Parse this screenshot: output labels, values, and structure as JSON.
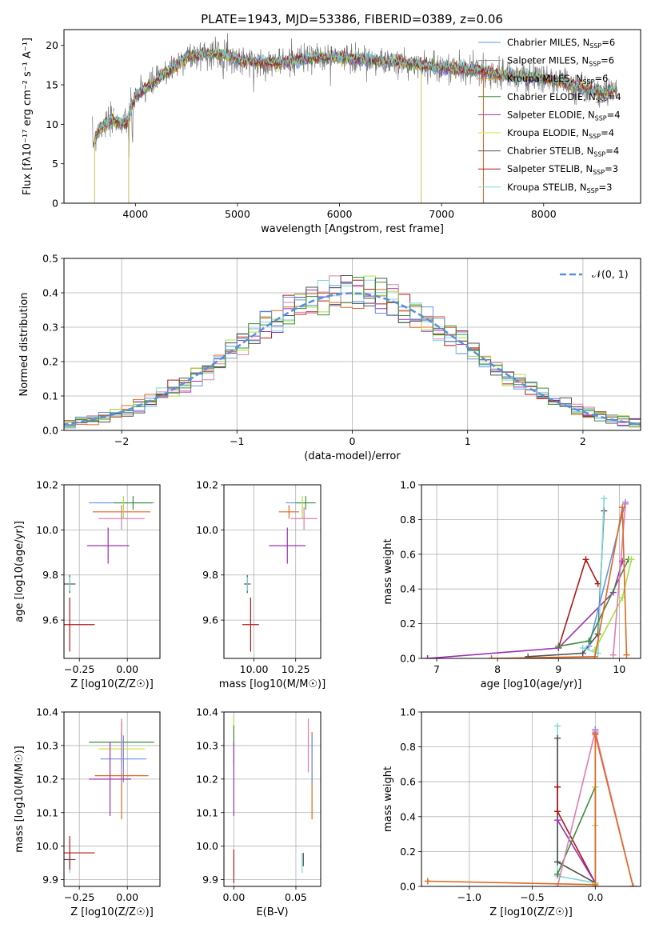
{
  "title": "PLATE=1943, MJD=53386, FIBERID=0389, z=0.06",
  "colors": [
    "#6495ED",
    "#8B8B8B",
    "#C8961E",
    "#3C8C3C",
    "#9B30B0",
    "#D4E040",
    "#505050",
    "#B01818",
    "#7DD8D8",
    "#E07CB0",
    "#E06820",
    "#A8E040"
  ],
  "chart_data": [
    {
      "type": "line",
      "id": "spectrum",
      "title": "PLATE=1943, MJD=53386, FIBERID=0389, z=0.06",
      "xlabel": "wavelength [Angstrom, rest frame]",
      "ylabel": "Flux [fλ10⁻¹⁷ erg cm⁻² s⁻¹ A⁻¹]",
      "xlim": [
        3300,
        8950
      ],
      "ylim": [
        0,
        22
      ],
      "xticks": [
        4000,
        5000,
        6000,
        7000,
        8000
      ],
      "yticks": [
        0,
        5,
        10,
        15,
        20
      ],
      "legend_position": "top-right",
      "series": [
        {
          "name": "Chabrier MILES, N_SSP=6",
          "color": "#6495ED"
        },
        {
          "name": "Salpeter MILES, N_SSP=6",
          "color": "#8B8B8B"
        },
        {
          "name": "Kroupa MILES, N_SSP=6",
          "color": "#C8961E"
        },
        {
          "name": "Chabrier ELODIE, N_SSP=4",
          "color": "#3C8C3C"
        },
        {
          "name": "Salpeter ELODIE, N_SSP=4",
          "color": "#9B30B0"
        },
        {
          "name": "Kroupa ELODIE, N_SSP=4",
          "color": "#D4E040"
        },
        {
          "name": "Chabrier STELIB, N_SSP=4",
          "color": "#505050"
        },
        {
          "name": "Salpeter STELIB, N_SSP=3",
          "color": "#B01818"
        },
        {
          "name": "Kroupa STELIB, N_SSP=3",
          "color": "#7DD8D8"
        }
      ],
      "continuum": {
        "x": [
          3580,
          3650,
          3700,
          3800,
          3900,
          3950,
          4000,
          4100,
          4200,
          4300,
          4400,
          4500,
          4700,
          4900,
          5000,
          5200,
          5400,
          5600,
          5800,
          6000,
          6200,
          6400,
          6600,
          6800,
          7000,
          7200,
          7400,
          7600,
          7800,
          8000,
          8200,
          8400,
          8600,
          8700
        ],
        "y": [
          7.5,
          9.5,
          10,
          10.5,
          10,
          11.5,
          13.5,
          14.5,
          15.5,
          16.5,
          17.5,
          18.5,
          19,
          18.8,
          18.2,
          17.8,
          17.8,
          18.2,
          18.5,
          18.5,
          18.3,
          18,
          17.8,
          17.5,
          17.2,
          17,
          16.8,
          16.2,
          16,
          15.8,
          15.3,
          14.5,
          14,
          14.5
        ]
      },
      "dips": [
        [
          3600,
          0
        ],
        [
          3934,
          0
        ],
        [
          6800,
          0
        ],
        [
          7410,
          0
        ]
      ]
    },
    {
      "type": "histogram",
      "id": "residuals",
      "xlabel": "(data-model)/error",
      "ylabel": "Normed distribution",
      "xlim": [
        -2.5,
        2.5
      ],
      "ylim": [
        0,
        0.5
      ],
      "xticks": [
        -2,
        -1,
        0,
        1,
        2
      ],
      "yticks": [
        0.0,
        0.1,
        0.2,
        0.3,
        0.4,
        0.5
      ],
      "reference_curve": {
        "name": "N(0,1)",
        "mu": 0,
        "sigma": 1,
        "color": "#5B8FD9"
      },
      "bin_width": 0.1,
      "legend_position": "top-right"
    },
    {
      "type": "scatter",
      "id": "age_vs_Z",
      "xlabel": "Z [log10(Z/Z☉)]",
      "ylabel": "age  [log10(age/yr)]",
      "xlim": [
        -0.33,
        0.17
      ],
      "ylim": [
        9.43,
        10.2
      ],
      "xticks": [
        -0.25,
        0.0
      ],
      "yticks": [
        9.6,
        9.8,
        10.0,
        10.2
      ],
      "points": [
        {
          "x": -0.03,
          "y": 10.12,
          "xerr": 0.17,
          "yerr": 0.0,
          "color": "#6495ED"
        },
        {
          "x": 0.03,
          "y": 10.12,
          "xerr": 0.1,
          "yerr": 0.03,
          "color": "#3C8C3C"
        },
        {
          "x": -0.03,
          "y": 10.08,
          "xerr": 0.15,
          "yerr": 0.03,
          "color": "#E06820"
        },
        {
          "x": -0.03,
          "y": 10.05,
          "xerr": 0.12,
          "yerr": 0.05,
          "color": "#E07CB0"
        },
        {
          "x": -0.02,
          "y": 10.1,
          "xerr": 0.0,
          "yerr": 0.05,
          "color": "#A8E040"
        },
        {
          "x": -0.1,
          "y": 9.93,
          "xerr": 0.11,
          "yerr": 0.08,
          "color": "#9B30B0"
        },
        {
          "x": -0.3,
          "y": 9.76,
          "xerr": 0.03,
          "yerr": 0.04,
          "color": "#505050"
        },
        {
          "x": -0.3,
          "y": 9.76,
          "xerr": 0.0,
          "yerr": 0.03,
          "color": "#7DD8D8"
        },
        {
          "x": -0.3,
          "y": 9.58,
          "xerr": 0.13,
          "yerr": 0.12,
          "color": "#B01818"
        }
      ]
    },
    {
      "type": "scatter",
      "id": "age_vs_mass",
      "xlabel": "mass [log10(M/M☉)]",
      "ylabel": "",
      "xlim": [
        9.82,
        10.4
      ],
      "ylim": [
        9.43,
        10.2
      ],
      "xticks": [
        10.0,
        10.25
      ],
      "yticks": [
        9.6,
        9.8,
        10.0,
        10.2
      ],
      "points": [
        {
          "x": 10.26,
          "y": 10.12,
          "xerr": 0.07,
          "yerr": 0.0,
          "color": "#6495ED"
        },
        {
          "x": 10.31,
          "y": 10.12,
          "xerr": 0.06,
          "yerr": 0.03,
          "color": "#3C8C3C"
        },
        {
          "x": 10.21,
          "y": 10.08,
          "xerr": 0.06,
          "yerr": 0.03,
          "color": "#E06820"
        },
        {
          "x": 10.3,
          "y": 10.05,
          "xerr": 0.08,
          "yerr": 0.05,
          "color": "#E07CB0"
        },
        {
          "x": 10.29,
          "y": 10.1,
          "xerr": 0.0,
          "yerr": 0.05,
          "color": "#A8E040"
        },
        {
          "x": 10.2,
          "y": 9.93,
          "xerr": 0.11,
          "yerr": 0.08,
          "color": "#9B30B0"
        },
        {
          "x": 9.96,
          "y": 9.76,
          "xerr": 0.02,
          "yerr": 0.04,
          "color": "#505050"
        },
        {
          "x": 9.96,
          "y": 9.76,
          "xerr": 0.0,
          "yerr": 0.03,
          "color": "#7DD8D8"
        },
        {
          "x": 9.98,
          "y": 9.58,
          "xerr": 0.05,
          "yerr": 0.12,
          "color": "#B01818"
        }
      ]
    },
    {
      "type": "line",
      "id": "massweight_vs_age",
      "xlabel": "age  [log10(age/yr)]",
      "ylabel": "mass weight",
      "xlim": [
        6.75,
        10.35
      ],
      "ylim": [
        0,
        1
      ],
      "xticks": [
        7,
        8,
        9,
        10
      ],
      "yticks": [
        0.0,
        0.2,
        0.4,
        0.6,
        0.8,
        1.0
      ],
      "series": [
        {
          "color": "#B01818",
          "x": [
            9.0,
            9.45,
            9.65
          ],
          "y": [
            0.06,
            0.57,
            0.43
          ]
        },
        {
          "color": "#9B30B0",
          "x": [
            6.85,
            9.0,
            9.9,
            10.05
          ],
          "y": [
            0.0,
            0.06,
            0.38,
            0.56
          ]
        },
        {
          "color": "#505050",
          "x": [
            8.5,
            9.4,
            9.65,
            9.75
          ],
          "y": [
            0.01,
            0.03,
            0.14,
            0.85
          ]
        },
        {
          "color": "#7DD8D8",
          "x": [
            9.4,
            9.65,
            9.75
          ],
          "y": [
            0.06,
            0.03,
            0.92
          ]
        },
        {
          "color": "#6495ED",
          "x": [
            9.5,
            10.1
          ],
          "y": [
            0.07,
            0.9
          ]
        },
        {
          "color": "#3C8C3C",
          "x": [
            9.0,
            9.5,
            10.15
          ],
          "y": [
            0.07,
            0.1,
            0.57
          ]
        },
        {
          "color": "#A8E040",
          "x": [
            9.6,
            10.05,
            10.2
          ],
          "y": [
            0.05,
            0.35,
            0.57
          ]
        },
        {
          "color": "#E07CB0",
          "x": [
            9.9,
            10.1
          ],
          "y": [
            0.02,
            0.89
          ]
        },
        {
          "color": "#E06820",
          "x": [
            7.9,
            9.6,
            10.05,
            10.12
          ],
          "y": [
            0.0,
            0.01,
            0.87,
            0.02
          ]
        }
      ]
    },
    {
      "type": "scatter",
      "id": "mass_vs_Z",
      "xlabel": "Z [log10(Z/Z☉)]",
      "ylabel": "mass [log10(M/M☉)]",
      "xlim": [
        -0.33,
        0.17
      ],
      "ylim": [
        9.88,
        10.4
      ],
      "xticks": [
        -0.25,
        0.0
      ],
      "yticks": [
        9.9,
        10.0,
        10.1,
        10.2,
        10.3,
        10.4
      ],
      "points": [
        {
          "x": -0.03,
          "y": 10.31,
          "xerr": 0.17,
          "yerr": 0.06,
          "color": "#3C8C3C"
        },
        {
          "x": -0.03,
          "y": 10.29,
          "xerr": 0.12,
          "yerr": 0.06,
          "color": "#D4E040"
        },
        {
          "x": -0.02,
          "y": 10.26,
          "xerr": 0.12,
          "yerr": 0.07,
          "color": "#6495ED"
        },
        {
          "x": -0.03,
          "y": 10.21,
          "xerr": 0.14,
          "yerr": 0.13,
          "color": "#E06820"
        },
        {
          "x": -0.03,
          "y": 10.3,
          "xerr": 0.0,
          "yerr": 0.08,
          "color": "#E07CB0"
        },
        {
          "x": -0.09,
          "y": 10.2,
          "xerr": 0.11,
          "yerr": 0.11,
          "color": "#9B30B0"
        },
        {
          "x": -0.3,
          "y": 9.96,
          "xerr": 0.03,
          "yerr": 0.02,
          "color": "#505050"
        },
        {
          "x": -0.3,
          "y": 9.95,
          "xerr": 0.0,
          "yerr": 0.03,
          "color": "#7DD8D8"
        },
        {
          "x": -0.3,
          "y": 9.98,
          "xerr": 0.13,
          "yerr": 0.05,
          "color": "#B01818"
        }
      ]
    },
    {
      "type": "scatter",
      "id": "mass_vs_EBV",
      "xlabel": "E(B-V)",
      "ylabel": "",
      "xlim": [
        -0.008,
        0.07
      ],
      "ylim": [
        9.88,
        10.4
      ],
      "xticks": [
        0.0,
        0.05
      ],
      "yticks": [
        9.9,
        10.0,
        10.1,
        10.2,
        10.3,
        10.4
      ],
      "points": [
        {
          "x": 0.0,
          "y": 10.35,
          "xerr": 0.0,
          "yerr": 0.04,
          "color": "#A8E040"
        },
        {
          "x": 0.0,
          "y": 10.3,
          "xerr": 0.0,
          "yerr": 0.06,
          "color": "#3C8C3C"
        },
        {
          "x": 0.0,
          "y": 10.2,
          "xerr": 0.0,
          "yerr": 0.11,
          "color": "#9B30B0"
        },
        {
          "x": 0.0,
          "y": 9.94,
          "xerr": 0.0,
          "yerr": 0.05,
          "color": "#B01818"
        },
        {
          "x": 0.06,
          "y": 10.3,
          "xerr": 0.0,
          "yerr": 0.08,
          "color": "#E07CB0"
        },
        {
          "x": 0.063,
          "y": 10.21,
          "xerr": 0.0,
          "yerr": 0.13,
          "color": "#E06820"
        },
        {
          "x": 0.063,
          "y": 10.26,
          "xerr": 0.0,
          "yerr": 0.07,
          "color": "#6495ED"
        },
        {
          "x": 0.055,
          "y": 9.95,
          "xerr": 0.0,
          "yerr": 0.03,
          "color": "#7DD8D8"
        },
        {
          "x": 0.056,
          "y": 9.96,
          "xerr": 0.0,
          "yerr": 0.02,
          "color": "#505050"
        }
      ]
    },
    {
      "type": "line",
      "id": "massweight_vs_Z",
      "xlabel": "Z [log10(Z/Z☉)]",
      "ylabel": "mass weight",
      "xlim": [
        -1.38,
        0.36
      ],
      "ylim": [
        0,
        1
      ],
      "xticks": [
        -1.0,
        -0.5,
        0.0
      ],
      "yticks": [
        0.0,
        0.2,
        0.4,
        0.6,
        0.8,
        1.0
      ],
      "series": [
        {
          "color": "#7DD8D8",
          "x": [
            -0.3,
            -0.3,
            -0.3,
            0.0
          ],
          "y": [
            0.92,
            0.14,
            0.06,
            0.02
          ]
        },
        {
          "color": "#505050",
          "x": [
            -0.3,
            -0.3,
            0.0
          ],
          "y": [
            0.85,
            0.14,
            0.02
          ]
        },
        {
          "color": "#B01818",
          "x": [
            -0.3,
            -0.3,
            0.0
          ],
          "y": [
            0.57,
            0.43,
            0.02
          ]
        },
        {
          "color": "#9B30B0",
          "x": [
            -0.3,
            0.0,
            0.0
          ],
          "y": [
            0.38,
            0.02,
            0.88
          ]
        },
        {
          "color": "#3C8C3C",
          "x": [
            -0.3,
            0.0,
            0.0
          ],
          "y": [
            0.07,
            0.57,
            0.0
          ]
        },
        {
          "color": "#A8E040",
          "x": [
            0.0,
            0.0,
            0.0
          ],
          "y": [
            0.57,
            0.35,
            0.02
          ]
        },
        {
          "color": "#6495ED",
          "x": [
            0.0,
            0.0
          ],
          "y": [
            0.9,
            0.0
          ]
        },
        {
          "color": "#E07CB0",
          "x": [
            -0.3,
            0.0,
            0.3
          ],
          "y": [
            0.0,
            0.89,
            0.0
          ]
        },
        {
          "color": "#E06820",
          "x": [
            -1.33,
            0.0,
            0.0,
            0.3
          ],
          "y": [
            0.03,
            0.01,
            0.87,
            0.0
          ]
        }
      ]
    }
  ]
}
